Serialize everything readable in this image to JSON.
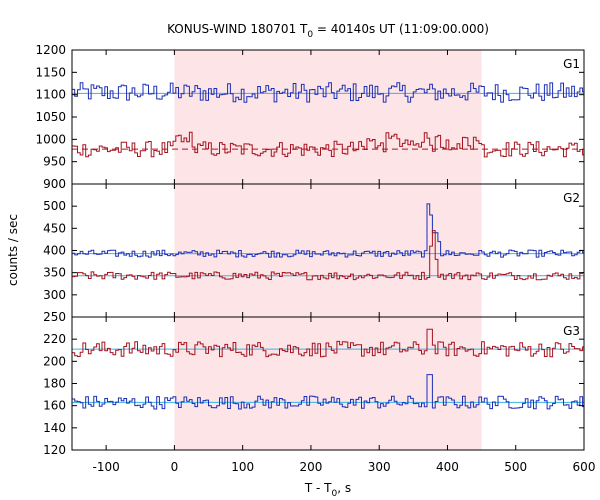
{
  "chart_data": {
    "type": "line",
    "title_prefix": "KONUS-WIND 180701 T",
    "title_sub": "0",
    "title_suffix": " = 40140s UT (11:09:00.000)",
    "xlabel_prefix": "T - T",
    "xlabel_sub": "0",
    "xlabel_suffix": ", s",
    "ylabel": "counts / sec",
    "xlim": [
      -150,
      600
    ],
    "xticks": [
      -100,
      0,
      100,
      200,
      300,
      400,
      500,
      600
    ],
    "highlight": {
      "from": 0,
      "to": 450
    },
    "colors": {
      "blue": "#1b2fb5",
      "red": "#a3121d",
      "fit": "#39b3e6",
      "bg_dashed": "#b3121d",
      "highlight": "#fde4e7"
    },
    "panels": [
      {
        "label": "G1",
        "ylim": [
          900,
          1200
        ],
        "yticks": [
          900,
          950,
          1000,
          1050,
          1100,
          1150,
          1200
        ],
        "series": [
          {
            "color": "blue",
            "level": 1105,
            "noise": 22,
            "fit": 1103,
            "fit_style": "solid"
          },
          {
            "color": "red",
            "level": 978,
            "noise": 18,
            "fit": 978,
            "fit_style": "dashed",
            "bumps": [
              {
                "from": 0,
                "to": 30,
                "add": 22
              },
              {
                "from": 280,
                "to": 450,
                "add": 18
              }
            ]
          }
        ]
      },
      {
        "label": "G2",
        "ylim": [
          250,
          550
        ],
        "yticks": [
          250,
          300,
          350,
          400,
          450,
          500
        ],
        "series": [
          {
            "color": "blue",
            "level": 393,
            "noise": 8,
            "fit": 393,
            "fit_style": "solid",
            "spikes": [
              {
                "x": 372,
                "value": 505
              },
              {
                "x": 376,
                "value": 480
              },
              {
                "x": 380,
                "value": 440
              },
              {
                "x": 385,
                "value": 420
              }
            ]
          },
          {
            "color": "red",
            "level": 343,
            "noise": 9,
            "fit": 343,
            "fit_style": "solid",
            "spikes": [
              {
                "x": 373,
                "value": 410
              },
              {
                "x": 377,
                "value": 445
              },
              {
                "x": 381,
                "value": 380
              }
            ]
          }
        ]
      },
      {
        "label": "G3",
        "ylim": [
          120,
          240
        ],
        "yticks": [
          120,
          140,
          160,
          180,
          200,
          220
        ],
        "series": [
          {
            "color": "red",
            "level": 211,
            "noise": 7,
            "fit": 211,
            "fit_style": "solid",
            "spikes": [
              {
                "x": 372,
                "value": 229
              }
            ]
          },
          {
            "color": "blue",
            "level": 163,
            "noise": 6,
            "fit": 163,
            "fit_style": "solid",
            "spikes": [
              {
                "x": 372,
                "value": 188
              }
            ]
          }
        ]
      }
    ]
  }
}
